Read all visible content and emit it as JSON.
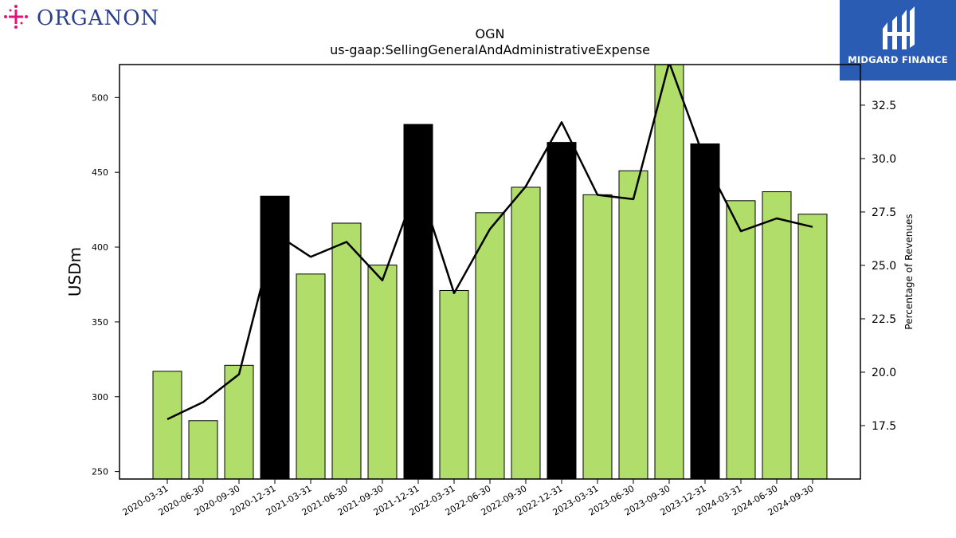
{
  "brand": {
    "left_logo_text": "ORGANON",
    "right_logo_text": "MIDGARD FINANCE"
  },
  "colors": {
    "bar_normal": "#b1dd6b",
    "bar_highlight": "#000000",
    "line": "#000000",
    "organon_text": "#2b3f8f",
    "organon_mark": "#e0157a",
    "midgard_bg": "#2b5cb3"
  },
  "chart_data": {
    "type": "bar",
    "title": "OGN",
    "subtitle": "us-gaap:SellingGeneralAndAdministrativeExpense",
    "ylabel": "USDm",
    "y2label": "Percentage of Revenues",
    "ylim": [
      245,
      522
    ],
    "y2lim": [
      15.0,
      34.4
    ],
    "yticks": [
      250,
      300,
      350,
      400,
      450,
      500
    ],
    "y2ticks": [
      "17.5",
      "20.0",
      "22.5",
      "25.0",
      "27.5",
      "30.0",
      "32.5"
    ],
    "categories": [
      "2020-03-31",
      "2020-06-30",
      "2020-09-30",
      "2020-12-31",
      "2021-03-31",
      "2021-06-30",
      "2021-09-30",
      "2021-12-31",
      "2022-03-31",
      "2022-06-30",
      "2022-09-30",
      "2022-12-31",
      "2023-03-31",
      "2023-06-30",
      "2023-09-30",
      "2023-12-31",
      "2024-03-31",
      "2024-06-30",
      "2024-09-30"
    ],
    "series": [
      {
        "type": "bar",
        "values": [
          317,
          284,
          321,
          434,
          382,
          416,
          388,
          482,
          371,
          423,
          440,
          470,
          435,
          451,
          525,
          469,
          431,
          437,
          422
        ],
        "highlight": [
          false,
          false,
          false,
          true,
          false,
          false,
          false,
          true,
          false,
          false,
          false,
          true,
          false,
          false,
          false,
          true,
          false,
          false,
          false
        ]
      },
      {
        "type": "line",
        "axis": "right",
        "values": [
          17.8,
          18.6,
          19.9,
          26.5,
          25.4,
          26.1,
          24.3,
          28.9,
          23.7,
          26.7,
          28.7,
          31.7,
          28.3,
          28.1,
          34.5,
          29.9,
          26.6,
          27.2,
          26.8
        ]
      }
    ]
  }
}
